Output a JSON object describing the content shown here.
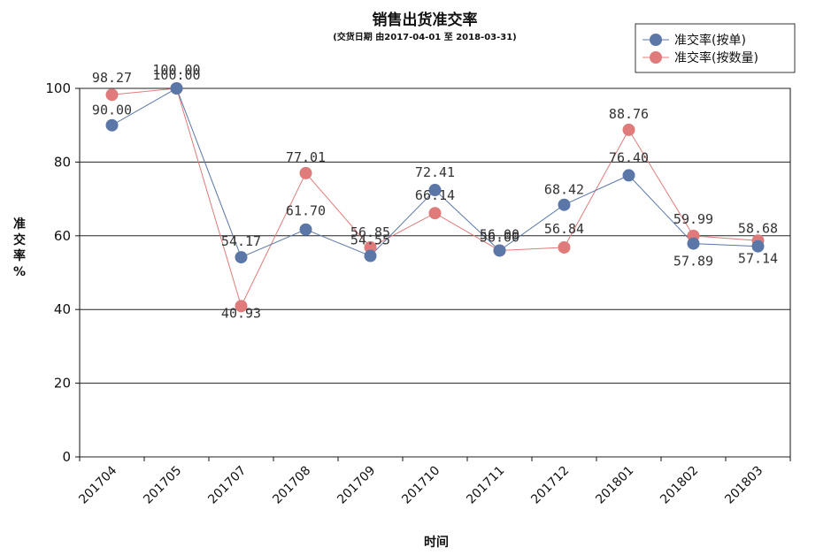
{
  "colors": {
    "series_by_order": "#5b77a8",
    "series_by_quantity": "#e07b7b",
    "grid": "#222222",
    "axis": "#111111"
  },
  "chart_data": {
    "type": "line",
    "title": "销售出货准交率",
    "subtitle": "(交货日期 由2017-04-01 至 2018-03-31)",
    "xlabel": "时间",
    "ylabel": "准交率 %",
    "categories": [
      "201704",
      "201705",
      "201707",
      "201708",
      "201709",
      "201710",
      "201711",
      "201712",
      "201801",
      "201802",
      "201803"
    ],
    "ylim": [
      0,
      100
    ],
    "yticks": [
      0,
      20,
      40,
      60,
      80,
      100
    ],
    "grid": true,
    "legend_position": "top-right",
    "series": [
      {
        "name": "准交率(按单)",
        "color": "#5b77a8",
        "values": [
          90.0,
          100.0,
          54.17,
          61.7,
          54.55,
          72.41,
          56.0,
          68.42,
          76.4,
          57.89,
          57.14
        ]
      },
      {
        "name": "准交率(按数量)",
        "color": "#e07b7b",
        "values": [
          98.27,
          100.0,
          40.93,
          77.01,
          56.85,
          66.14,
          56.0,
          56.84,
          88.76,
          59.99,
          58.68
        ]
      }
    ]
  }
}
